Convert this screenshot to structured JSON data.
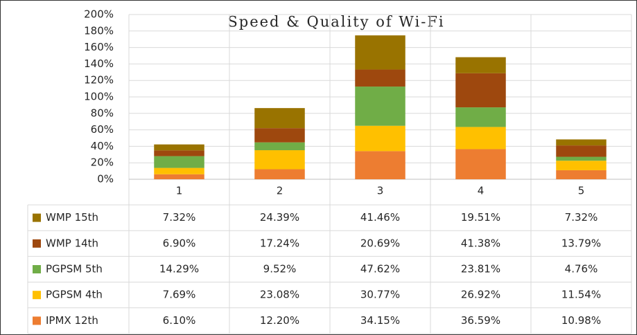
{
  "chart_data": {
    "type": "stacked_bar",
    "title": "Speed & Quality of Wi-Fi",
    "categories": [
      "1",
      "2",
      "3",
      "4",
      "5"
    ],
    "series": [
      {
        "name": "IPMX 12th",
        "color": "#ed7d31",
        "values": [
          6.1,
          12.2,
          34.15,
          36.59,
          10.98
        ],
        "value_labels": [
          "6.10%",
          "12.20%",
          "34.15%",
          "36.59%",
          "10.98%"
        ]
      },
      {
        "name": "PGPSM 4th",
        "color": "#ffc000",
        "values": [
          7.69,
          23.08,
          30.77,
          26.92,
          11.54
        ],
        "value_labels": [
          "7.69%",
          "23.08%",
          "30.77%",
          "26.92%",
          "11.54%"
        ]
      },
      {
        "name": "PGPSM 5th",
        "color": "#70ad47",
        "values": [
          14.29,
          9.52,
          47.62,
          23.81,
          4.76
        ],
        "value_labels": [
          "14.29%",
          "9.52%",
          "47.62%",
          "23.81%",
          "4.76%"
        ]
      },
      {
        "name": "WMP 14th",
        "color": "#9e480e",
        "values": [
          6.9,
          17.24,
          20.69,
          41.38,
          13.79
        ],
        "value_labels": [
          "6.90%",
          "17.24%",
          "20.69%",
          "41.38%",
          "13.79%"
        ]
      },
      {
        "name": "WMP 15th",
        "color": "#997300",
        "values": [
          7.32,
          24.39,
          41.46,
          19.51,
          7.32
        ],
        "value_labels": [
          "7.32%",
          "24.39%",
          "41.46%",
          "19.51%",
          "7.32%"
        ]
      }
    ],
    "ylim": [
      0,
      200
    ],
    "yticks": [
      {
        "value": 0,
        "label": "0%"
      },
      {
        "value": 20,
        "label": "20%"
      },
      {
        "value": 40,
        "label": "40%"
      },
      {
        "value": 60,
        "label": "60%"
      },
      {
        "value": 80,
        "label": "80%"
      },
      {
        "value": 100,
        "label": "100%"
      },
      {
        "value": 120,
        "label": "120%"
      },
      {
        "value": 140,
        "label": "140%"
      },
      {
        "value": 160,
        "label": "160%"
      },
      {
        "value": 180,
        "label": "180%"
      },
      {
        "value": 200,
        "label": "200%"
      }
    ],
    "grid": true
  }
}
